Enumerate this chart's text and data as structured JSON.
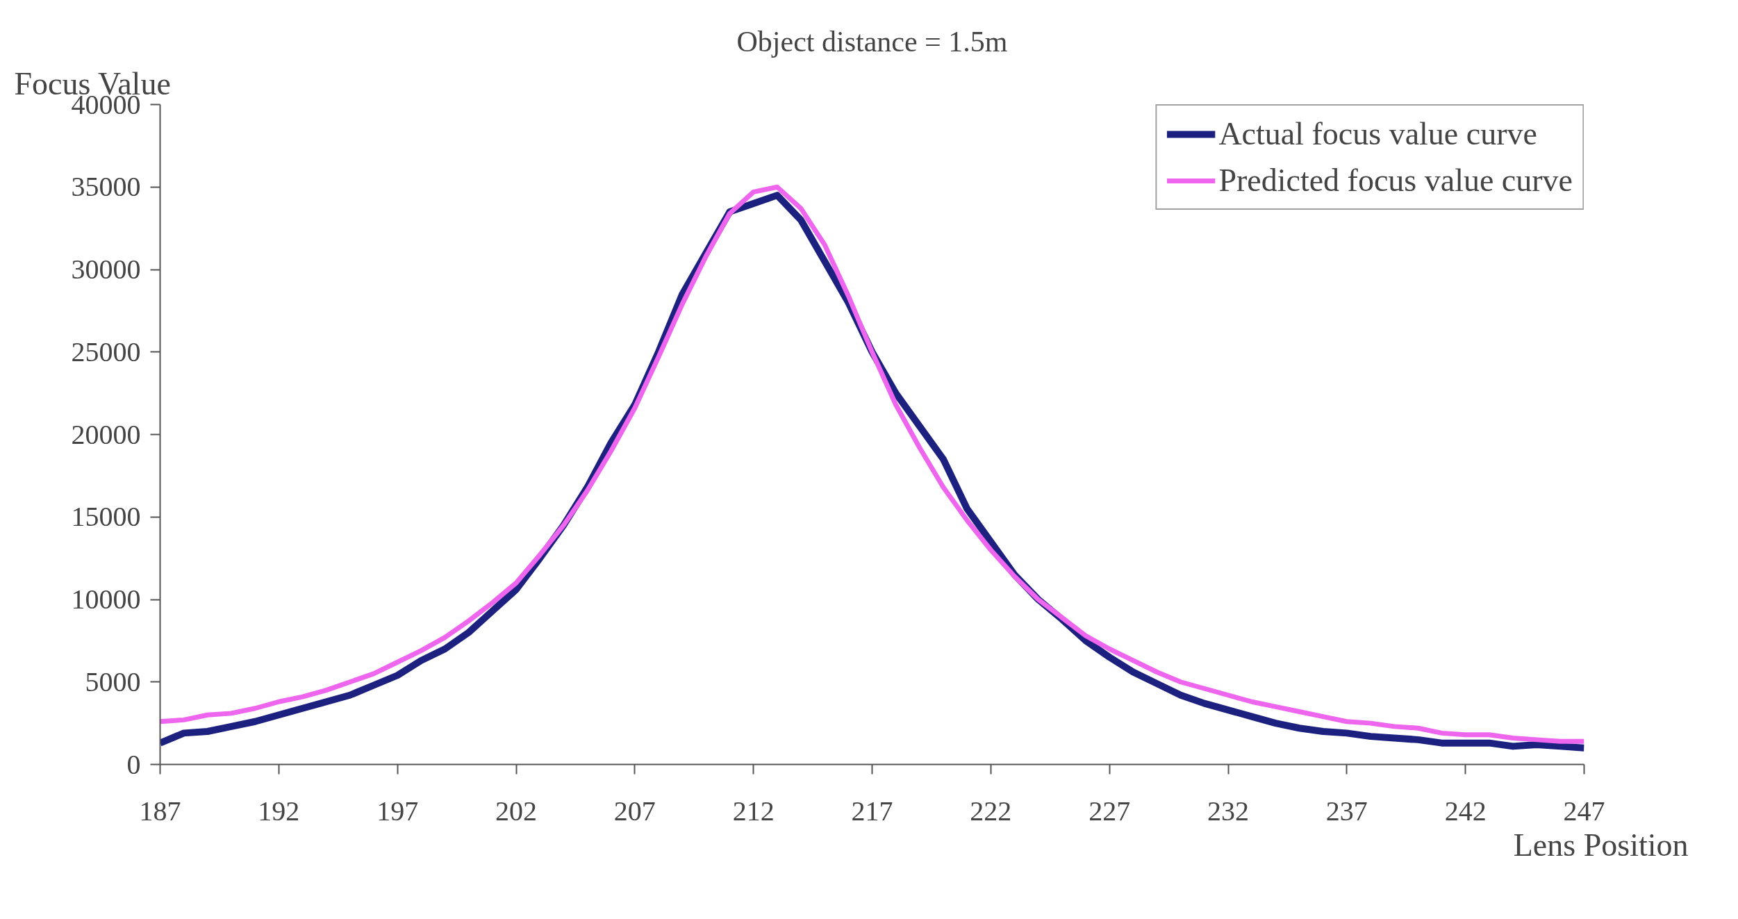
{
  "chart_data": {
    "type": "line",
    "title": "Object distance = 1.5m",
    "xlabel": "Lens Position",
    "ylabel": "Focus Value",
    "x": [
      187,
      188,
      189,
      190,
      191,
      192,
      193,
      194,
      195,
      196,
      197,
      198,
      199,
      200,
      201,
      202,
      203,
      204,
      205,
      206,
      207,
      208,
      209,
      210,
      211,
      212,
      213,
      214,
      215,
      216,
      217,
      218,
      219,
      220,
      221,
      222,
      223,
      224,
      225,
      226,
      227,
      228,
      229,
      230,
      231,
      232,
      233,
      234,
      235,
      236,
      237,
      238,
      239,
      240,
      241,
      242,
      243,
      244,
      245,
      246,
      247
    ],
    "series": [
      {
        "name": "Actual focus value curve",
        "color": "#1c2180",
        "values": [
          1300,
          1900,
          2000,
          2300,
          2600,
          3000,
          3400,
          3800,
          4200,
          4800,
          5400,
          6300,
          7000,
          8000,
          9300,
          10600,
          12500,
          14500,
          16800,
          19500,
          21800,
          25000,
          28500,
          31000,
          33500,
          34000,
          34500,
          33000,
          30500,
          28000,
          25000,
          22500,
          20500,
          18500,
          15500,
          13500,
          11500,
          10000,
          8800,
          7500,
          6500,
          5600,
          4900,
          4200,
          3700,
          3300,
          2900,
          2500,
          2200,
          2000,
          1900,
          1700,
          1600,
          1500,
          1300,
          1300,
          1300,
          1100,
          1200,
          1100,
          1000
        ]
      },
      {
        "name": "Predicted focus value curve",
        "color": "#ee66ee",
        "values": [
          2600,
          2700,
          3000,
          3100,
          3400,
          3800,
          4100,
          4500,
          5000,
          5500,
          6200,
          6900,
          7700,
          8700,
          9800,
          11000,
          12700,
          14500,
          16600,
          19000,
          21600,
          24700,
          27900,
          30800,
          33400,
          34700,
          35000,
          33700,
          31500,
          28400,
          25000,
          21800,
          19200,
          16800,
          14800,
          13000,
          11400,
          10000,
          8900,
          7800,
          7000,
          6300,
          5600,
          5000,
          4600,
          4200,
          3800,
          3500,
          3200,
          2900,
          2600,
          2500,
          2300,
          2200,
          1900,
          1800,
          1800,
          1600,
          1500,
          1400,
          1400
        ]
      }
    ],
    "xlim": [
      187,
      247
    ],
    "xticks": [
      187,
      192,
      197,
      202,
      207,
      212,
      217,
      222,
      227,
      232,
      237,
      242,
      247
    ],
    "ylim": [
      0,
      40000
    ],
    "yticks": [
      0,
      5000,
      10000,
      15000,
      20000,
      25000,
      30000,
      35000,
      40000
    ],
    "grid": false,
    "legend": "top right",
    "marker": "none",
    "line_style": "solid"
  }
}
